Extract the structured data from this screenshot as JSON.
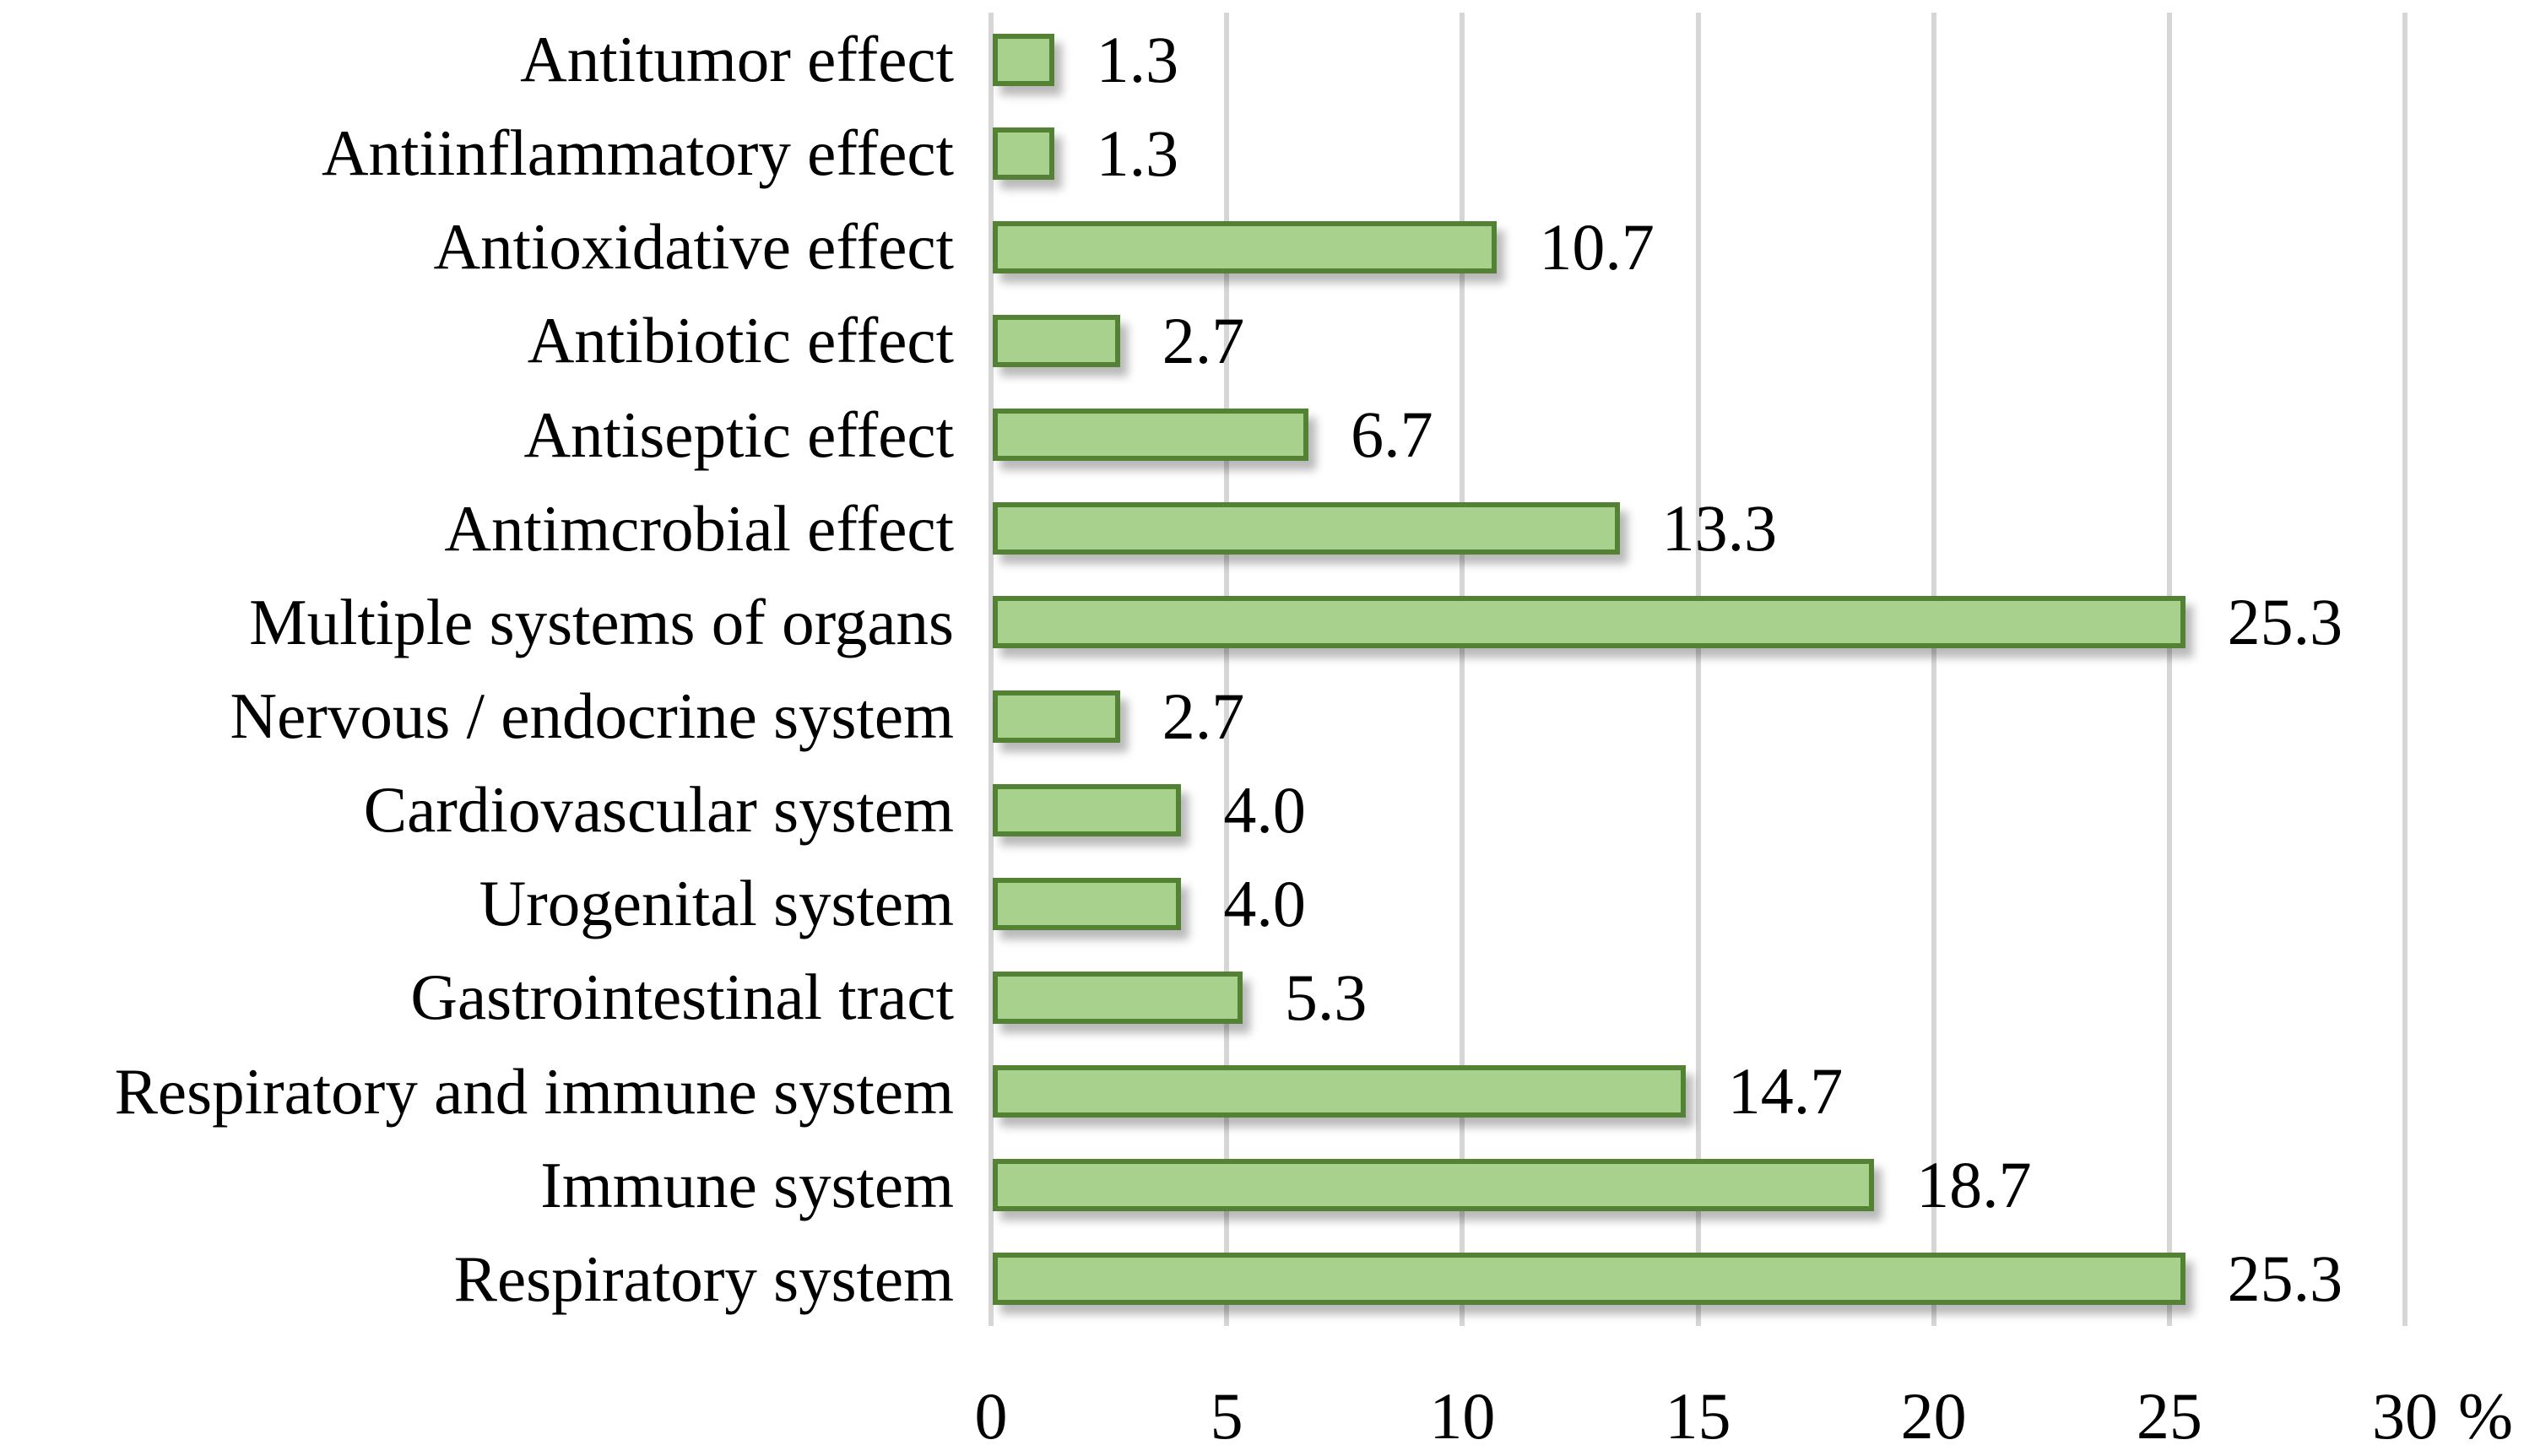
{
  "chart_data": {
    "type": "bar",
    "orientation": "horizontal",
    "title": "",
    "xlabel": "",
    "ylabel": "",
    "xlim": [
      0,
      30
    ],
    "grid": true,
    "legend": false,
    "categories": [
      "Antitumor effect",
      "Antiinflammatory effect",
      "Antioxidative effect",
      "Antibiotic effect",
      "Antiseptic effect",
      "Antimcrobial effect",
      "Multiple systems of organs",
      "Nervous / endocrine system",
      "Cardiovascular system",
      "Urogenital system",
      "Gastrointestinal tract",
      "Respiratory and immune system",
      "Immune system",
      "Respiratory system"
    ],
    "values": [
      1.3,
      1.3,
      10.7,
      2.7,
      6.7,
      13.3,
      25.3,
      2.7,
      4.0,
      4.0,
      5.3,
      14.7,
      18.7,
      25.3
    ],
    "value_labels": [
      "1.3",
      "1.3",
      "10.7",
      "2.7",
      "6.7",
      "13.3",
      "25.3",
      "2.7",
      "4.0",
      "4.0",
      "5.3",
      "14.7",
      "18.7",
      "25.3"
    ],
    "x_ticks": [
      0,
      5,
      10,
      15,
      20,
      25,
      30
    ],
    "x_tick_labels": [
      "0",
      "5",
      "10",
      "15",
      "20",
      "25",
      "30"
    ],
    "x_axis_suffix": "%"
  },
  "colors": {
    "bar_fill": "#A9D18E",
    "bar_border": "#548235",
    "gridline": "#D6D6D6",
    "text": "#000000",
    "background": "#FFFFFF"
  }
}
